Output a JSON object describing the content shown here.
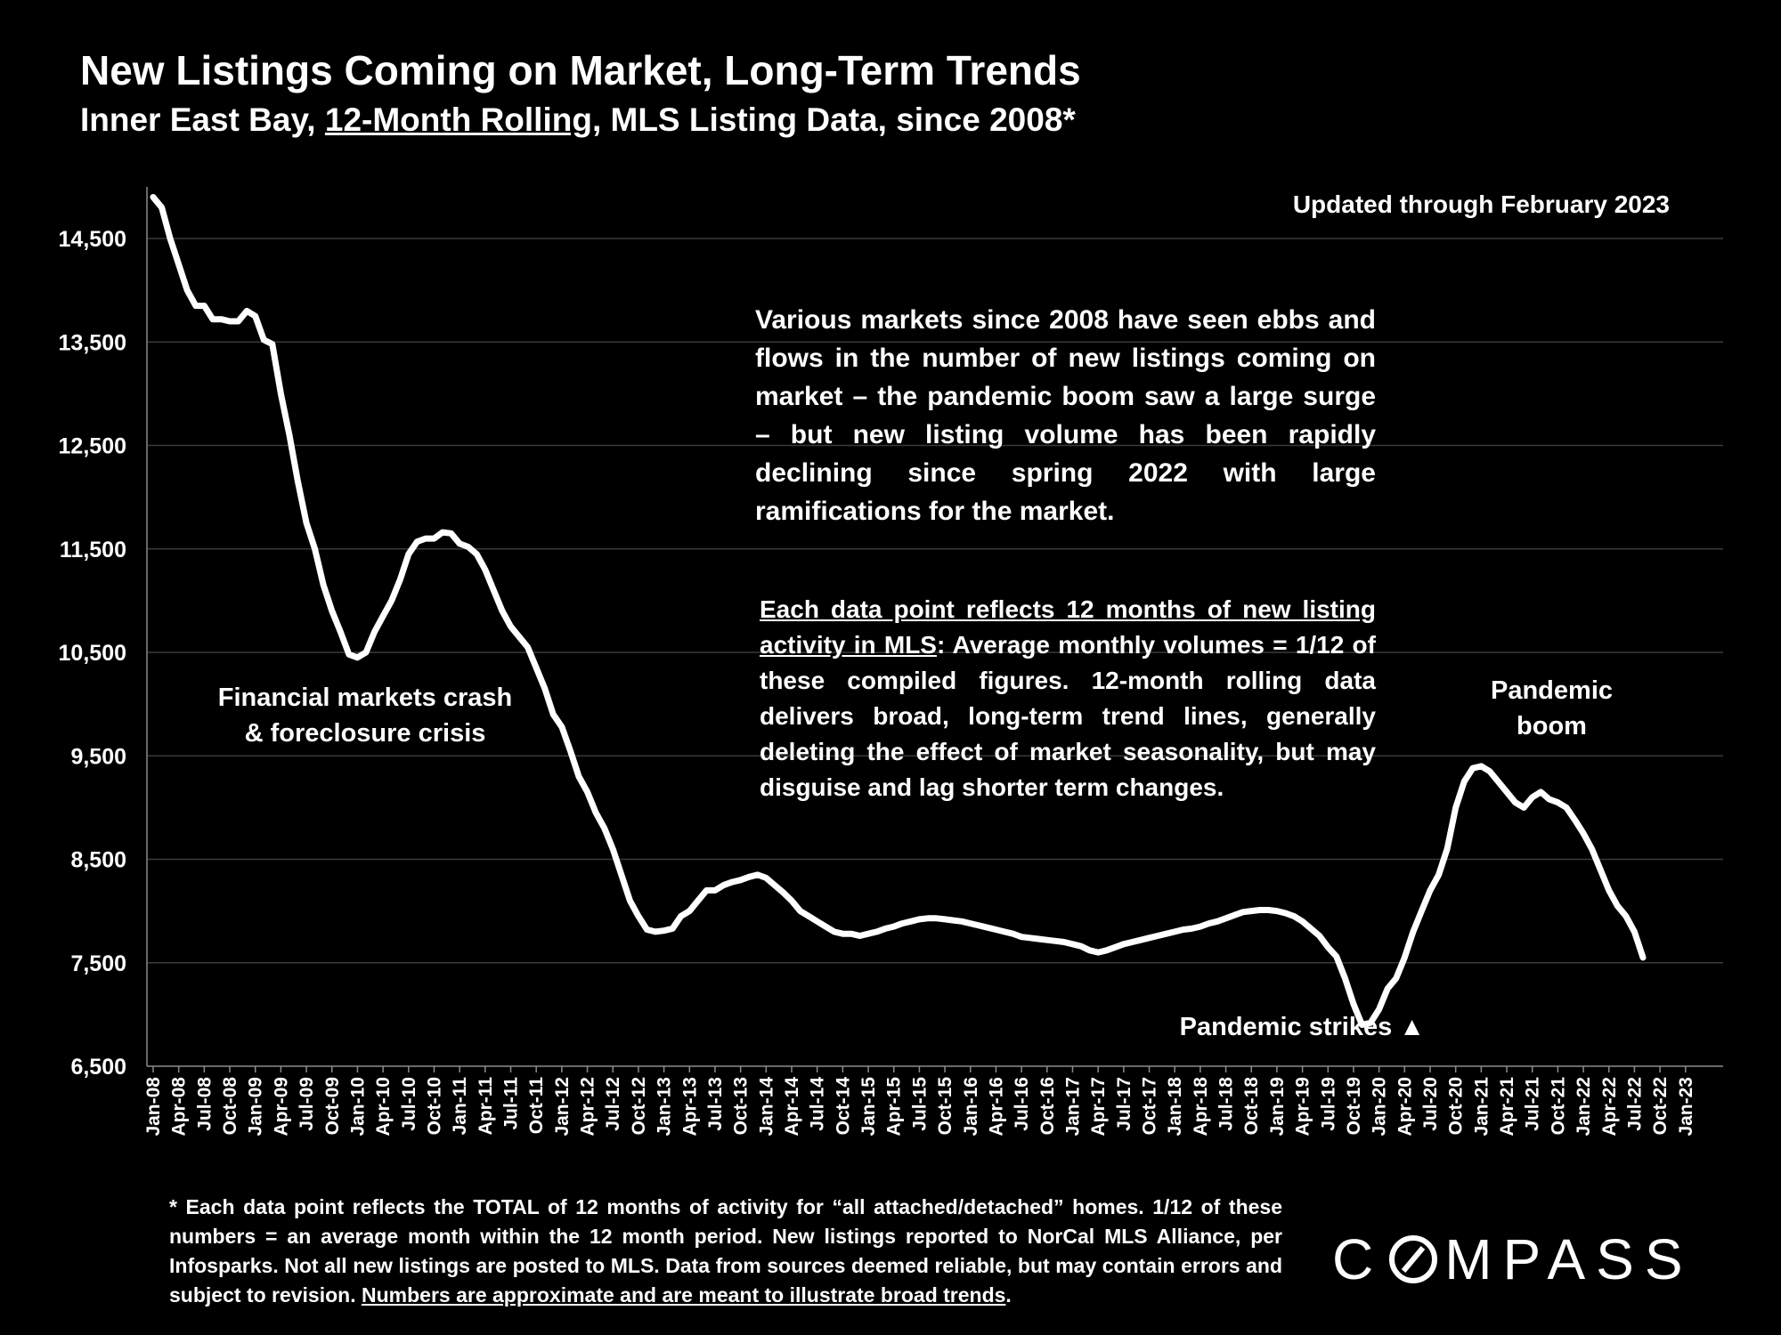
{
  "header": {
    "title": "New Listings Coming on Market, Long-Term Trends",
    "subtitle_pre": "Inner East Bay, ",
    "subtitle_underlined": "12-Month Rolling",
    "subtitle_post": ", MLS Listing Data, since 2008*"
  },
  "updated_note": "Updated through February 2023",
  "commentary": "Various markets since 2008 have seen ebbs and flows in the number of new listings coming on market – the pandemic boom saw a large surge – but new listing volume has been rapidly declining since spring 2022 with large ramifications for the market.",
  "methodology": {
    "lead": "Each data point reflects 12 months of new listing activity in MLS",
    "rest": ":  Average monthly volumes = 1/12 of these compiled figures. 12-month rolling data delivers broad, long-term trend lines, generally deleting the effect of market seasonality, but may disguise and lag shorter term changes."
  },
  "annotations": {
    "crash_line1": "Financial markets crash",
    "crash_line2": "& foreclosure crisis",
    "boom_line1": "Pandemic",
    "boom_line2": "boom",
    "strikes": "Pandemic strikes ▲"
  },
  "footnote": {
    "text": "* Each data point reflects the TOTAL of 12 months of activity for “all attached/detached” homes. 1/12 of these numbers = an average month within the 12 month period. New listings reported to NorCal MLS Alliance, per Infosparks. Not all new listings are posted to MLS. Data from sources deemed reliable, but may contain errors and subject to revision. ",
    "underlined": "Numbers are approximate and are meant to illustrate broad trends",
    "end": "."
  },
  "logo": {
    "pre": "C",
    "post": "MPASS"
  },
  "colors": {
    "background": "#000000",
    "line": "#ffffff",
    "grid": "#3a3a3a",
    "text": "#ffffff"
  },
  "chart_data": {
    "type": "line",
    "title": "New Listings Coming on Market, Long-Term Trends",
    "ylim": [
      6500,
      15000
    ],
    "yticks": [
      6500,
      7500,
      8500,
      9500,
      10500,
      11500,
      12500,
      13500,
      14500
    ],
    "ytick_labels": [
      "6,500",
      "7,500",
      "8,500",
      "9,500",
      "10,500",
      "11,500",
      "12,500",
      "13,500",
      "14,500"
    ],
    "grid": true,
    "x_tick_labels": [
      "Jan-08",
      "Apr-08",
      "Jul-08",
      "Oct-08",
      "Jan-09",
      "Apr-09",
      "Jul-09",
      "Oct-09",
      "Jan-10",
      "Apr-10",
      "Jul-10",
      "Oct-10",
      "Jan-11",
      "Apr-11",
      "Jul-11",
      "Oct-11",
      "Jan-12",
      "Apr-12",
      "Jul-12",
      "Oct-12",
      "Jan-13",
      "Apr-13",
      "Jul-13",
      "Oct-13",
      "Jan-14",
      "Apr-14",
      "Jul-14",
      "Oct-14",
      "Jan-15",
      "Apr-15",
      "Jul-15",
      "Oct-15",
      "Jan-16",
      "Apr-16",
      "Jul-16",
      "Oct-16",
      "Jan-17",
      "Apr-17",
      "Jul-17",
      "Oct-17",
      "Jan-18",
      "Apr-18",
      "Jul-18",
      "Oct-18",
      "Jan-19",
      "Apr-19",
      "Jul-19",
      "Oct-19",
      "Jan-20",
      "Apr-20",
      "Jul-20",
      "Oct-20",
      "Jan-21",
      "Apr-21",
      "Jul-21",
      "Oct-21",
      "Jan-22",
      "Apr-22",
      "Jul-22",
      "Oct-22",
      "Jan-23"
    ],
    "series": [
      {
        "values": [
          14900,
          14800,
          14500,
          14250,
          14000,
          13850,
          13850,
          13720,
          13720,
          13700,
          13700,
          13800,
          13750,
          13520,
          13480,
          13000,
          12600,
          12150,
          11750,
          11500,
          11150,
          10900,
          10700,
          10480,
          10450,
          10500,
          10700,
          10850,
          11000,
          11200,
          11450,
          11570,
          11600,
          11600,
          11660,
          11650,
          11550,
          11520,
          11450,
          11300,
          11100,
          10900,
          10750,
          10650,
          10550,
          10350,
          10150,
          9900,
          9780,
          9550,
          9300,
          9150,
          8950,
          8800,
          8600,
          8350,
          8100,
          7950,
          7820,
          7800,
          7810,
          7830,
          7950,
          8000,
          8100,
          8200,
          8200,
          8250,
          8280,
          8300,
          8330,
          8350,
          8320,
          8250,
          8180,
          8100,
          8000,
          7950,
          7900,
          7850,
          7800,
          7780,
          7780,
          7760,
          7780,
          7800,
          7830,
          7850,
          7880,
          7900,
          7920,
          7930,
          7930,
          7920,
          7910,
          7900,
          7880,
          7860,
          7840,
          7820,
          7800,
          7780,
          7750,
          7740,
          7730,
          7720,
          7710,
          7700,
          7680,
          7660,
          7620,
          7600,
          7620,
          7650,
          7680,
          7700,
          7720,
          7740,
          7760,
          7780,
          7800,
          7820,
          7830,
          7850,
          7880,
          7900,
          7930,
          7960,
          7990,
          8000,
          8010,
          8010,
          8000,
          7980,
          7950,
          7900,
          7830,
          7760,
          7650,
          7560,
          7350,
          7100,
          6900,
          6920,
          7050,
          7250,
          7350,
          7550,
          7800,
          8000,
          8200,
          8350,
          8600,
          9000,
          9250,
          9380,
          9400,
          9350,
          9250,
          9150,
          9050,
          9000,
          9100,
          9150,
          9080,
          9050,
          9000,
          8880,
          8750,
          8600,
          8400,
          8200,
          8050,
          7950,
          7800,
          7550
        ]
      }
    ]
  }
}
